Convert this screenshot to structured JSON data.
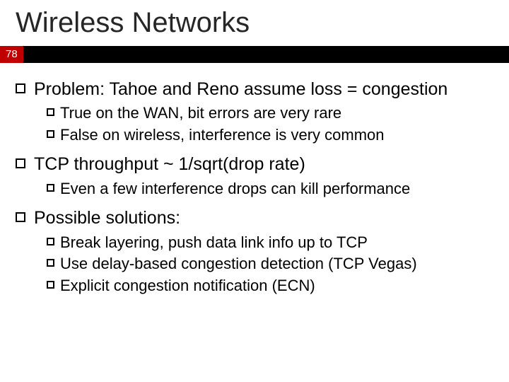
{
  "title": "Wireless Networks",
  "page_number": "78",
  "colors": {
    "bar_bg": "#000000",
    "pagenum_bg": "#c00000",
    "pagenum_fg": "#ffffff",
    "background": "#ffffff",
    "text": "#000000",
    "title_color": "#262626"
  },
  "typography": {
    "title_fontsize": 40,
    "lvl1_fontsize": 25,
    "lvl2_fontsize": 22
  },
  "bullets": [
    {
      "text": "Problem: Tahoe and Reno assume loss = congestion",
      "sub": [
        "True on the WAN, bit errors are very rare",
        "False on wireless, interference is very common"
      ]
    },
    {
      "text": "TCP throughput ~ 1/sqrt(drop rate)",
      "sub": [
        "Even a few interference drops can kill performance"
      ]
    },
    {
      "text": "Possible solutions:",
      "sub": [
        "Break layering, push data link info up to TCP",
        "Use delay-based congestion detection (TCP Vegas)",
        "Explicit congestion notification (ECN)"
      ]
    }
  ]
}
